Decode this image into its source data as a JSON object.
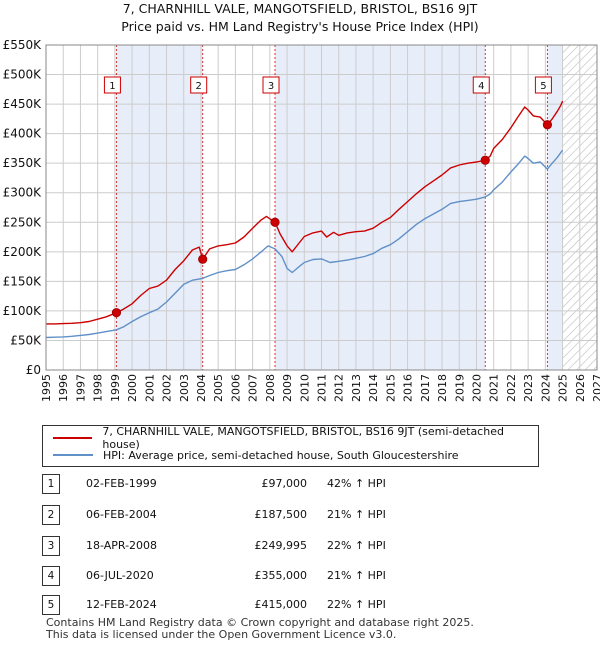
{
  "title": {
    "line1": "7, CHARNHILL VALE, MANGOTSFIELD, BRISTOL, BS16 9JT",
    "line2": "Price paid vs. HM Land Registry's House Price Index (HPI)"
  },
  "chart_data": {
    "type": "line",
    "title": "Price paid vs. HM Land Registry's House Price Index (HPI)",
    "xlim": [
      1995,
      2027
    ],
    "ylim": [
      0,
      550000
    ],
    "x_ticks": [
      "1995",
      "1996",
      "1997",
      "1998",
      "1999",
      "2000",
      "2001",
      "2002",
      "2003",
      "2004",
      "2005",
      "2006",
      "2007",
      "2008",
      "2009",
      "2010",
      "2011",
      "2012",
      "2013",
      "2014",
      "2015",
      "2016",
      "2017",
      "2018",
      "2019",
      "2020",
      "2021",
      "2022",
      "2023",
      "2024",
      "2025",
      "2026",
      "2027"
    ],
    "y_ticks": [
      {
        "value": 0,
        "label": "£0"
      },
      {
        "value": 50000,
        "label": "£50K"
      },
      {
        "value": 100000,
        "label": "£100K"
      },
      {
        "value": 150000,
        "label": "£150K"
      },
      {
        "value": 200000,
        "label": "£200K"
      },
      {
        "value": 250000,
        "label": "£250K"
      },
      {
        "value": 300000,
        "label": "£300K"
      },
      {
        "value": 350000,
        "label": "£350K"
      },
      {
        "value": 400000,
        "label": "£400K"
      },
      {
        "value": 450000,
        "label": "£450K"
      },
      {
        "value": 500000,
        "label": "£500K"
      },
      {
        "value": 550000,
        "label": "£550K"
      }
    ],
    "forecast_from": 2025.0,
    "series": [
      {
        "name": "7, CHARNHILL VALE, MANGOTSFIELD, BRISTOL, BS16 9JT (semi-detached house)",
        "color": "#cc0000",
        "points": [
          [
            1995.0,
            78000
          ],
          [
            1995.5,
            78000
          ],
          [
            1996.0,
            78500
          ],
          [
            1996.5,
            79000
          ],
          [
            1997.0,
            80000
          ],
          [
            1997.5,
            82000
          ],
          [
            1998.0,
            86000
          ],
          [
            1998.5,
            90000
          ],
          [
            1999.09,
            97000
          ],
          [
            1999.5,
            103000
          ],
          [
            2000.0,
            112000
          ],
          [
            2000.5,
            126000
          ],
          [
            2001.0,
            138000
          ],
          [
            2001.5,
            142000
          ],
          [
            2002.0,
            152000
          ],
          [
            2002.5,
            170000
          ],
          [
            2003.0,
            185000
          ],
          [
            2003.5,
            203000
          ],
          [
            2003.9,
            208000
          ],
          [
            2004.1,
            187500
          ],
          [
            2004.5,
            205000
          ],
          [
            2005.0,
            210000
          ],
          [
            2005.5,
            212000
          ],
          [
            2006.0,
            215000
          ],
          [
            2006.5,
            225000
          ],
          [
            2007.0,
            240000
          ],
          [
            2007.5,
            254000
          ],
          [
            2007.8,
            260000
          ],
          [
            2008.3,
            249995
          ],
          [
            2008.6,
            230000
          ],
          [
            2009.0,
            210000
          ],
          [
            2009.3,
            200000
          ],
          [
            2009.7,
            215000
          ],
          [
            2010.0,
            226000
          ],
          [
            2010.5,
            232000
          ],
          [
            2011.0,
            235000
          ],
          [
            2011.3,
            225000
          ],
          [
            2011.7,
            233000
          ],
          [
            2012.0,
            228000
          ],
          [
            2012.5,
            232000
          ],
          [
            2013.0,
            234000
          ],
          [
            2013.5,
            235000
          ],
          [
            2014.0,
            240000
          ],
          [
            2014.5,
            250000
          ],
          [
            2015.0,
            258000
          ],
          [
            2015.5,
            272000
          ],
          [
            2016.0,
            285000
          ],
          [
            2016.5,
            298000
          ],
          [
            2017.0,
            310000
          ],
          [
            2017.5,
            320000
          ],
          [
            2018.0,
            330000
          ],
          [
            2018.5,
            342000
          ],
          [
            2019.0,
            347000
          ],
          [
            2019.5,
            350000
          ],
          [
            2020.0,
            352000
          ],
          [
            2020.51,
            355000
          ],
          [
            2020.8,
            362000
          ],
          [
            2021.0,
            375000
          ],
          [
            2021.5,
            390000
          ],
          [
            2022.0,
            410000
          ],
          [
            2022.4,
            428000
          ],
          [
            2022.8,
            445000
          ],
          [
            2023.0,
            440000
          ],
          [
            2023.3,
            430000
          ],
          [
            2023.7,
            428000
          ],
          [
            2024.12,
            415000
          ],
          [
            2024.4,
            425000
          ],
          [
            2024.7,
            438000
          ],
          [
            2024.9,
            448000
          ],
          [
            2025.0,
            455000
          ]
        ]
      },
      {
        "name": "HPI: Average price, semi-detached house, South Gloucestershire",
        "color": "#6090c8",
        "points": [
          [
            1995.0,
            55000
          ],
          [
            1995.5,
            55500
          ],
          [
            1996.0,
            56000
          ],
          [
            1996.5,
            57000
          ],
          [
            1997.0,
            58500
          ],
          [
            1997.5,
            60000
          ],
          [
            1998.0,
            62500
          ],
          [
            1998.5,
            65000
          ],
          [
            1999.09,
            68000
          ],
          [
            1999.5,
            73000
          ],
          [
            2000.0,
            82000
          ],
          [
            2000.5,
            90000
          ],
          [
            2001.0,
            97000
          ],
          [
            2001.5,
            103000
          ],
          [
            2002.0,
            115000
          ],
          [
            2002.5,
            130000
          ],
          [
            2003.0,
            145000
          ],
          [
            2003.5,
            152000
          ],
          [
            2004.1,
            155000
          ],
          [
            2004.5,
            160000
          ],
          [
            2005.0,
            165000
          ],
          [
            2005.5,
            168000
          ],
          [
            2006.0,
            170000
          ],
          [
            2006.5,
            178000
          ],
          [
            2007.0,
            188000
          ],
          [
            2007.5,
            200000
          ],
          [
            2007.9,
            210000
          ],
          [
            2008.3,
            205000
          ],
          [
            2008.7,
            192000
          ],
          [
            2009.0,
            172000
          ],
          [
            2009.3,
            165000
          ],
          [
            2009.7,
            175000
          ],
          [
            2010.0,
            182000
          ],
          [
            2010.5,
            187000
          ],
          [
            2011.0,
            188000
          ],
          [
            2011.5,
            182000
          ],
          [
            2012.0,
            184000
          ],
          [
            2012.5,
            186000
          ],
          [
            2013.0,
            189000
          ],
          [
            2013.5,
            192000
          ],
          [
            2014.0,
            197000
          ],
          [
            2014.5,
            206000
          ],
          [
            2015.0,
            212000
          ],
          [
            2015.5,
            222000
          ],
          [
            2016.0,
            234000
          ],
          [
            2016.5,
            246000
          ],
          [
            2017.0,
            256000
          ],
          [
            2017.5,
            264000
          ],
          [
            2018.0,
            272000
          ],
          [
            2018.5,
            282000
          ],
          [
            2019.0,
            285000
          ],
          [
            2019.5,
            287000
          ],
          [
            2020.0,
            289000
          ],
          [
            2020.51,
            293000
          ],
          [
            2020.8,
            298000
          ],
          [
            2021.0,
            305000
          ],
          [
            2021.5,
            318000
          ],
          [
            2022.0,
            335000
          ],
          [
            2022.4,
            348000
          ],
          [
            2022.8,
            362000
          ],
          [
            2023.0,
            358000
          ],
          [
            2023.3,
            350000
          ],
          [
            2023.7,
            352000
          ],
          [
            2024.12,
            340000
          ],
          [
            2024.4,
            350000
          ],
          [
            2024.7,
            360000
          ],
          [
            2024.9,
            368000
          ],
          [
            2025.0,
            372000
          ]
        ]
      }
    ],
    "sales": [
      {
        "num": "1",
        "x": 1999.09,
        "price": 97000
      },
      {
        "num": "2",
        "x": 2004.1,
        "price": 187500
      },
      {
        "num": "3",
        "x": 2008.3,
        "price": 249995
      },
      {
        "num": "4",
        "x": 2020.51,
        "price": 355000
      },
      {
        "num": "5",
        "x": 2024.12,
        "price": 415000
      }
    ],
    "shade_ranges": [
      [
        1999.09,
        2004.1
      ],
      [
        2008.3,
        2020.51
      ],
      [
        2024.12,
        2025.0
      ]
    ],
    "colors": {
      "grid": "#cccccc",
      "shade": "#e8eef9",
      "marker_line": "#cc0000"
    }
  },
  "legend": {
    "property": "7, CHARNHILL VALE, MANGOTSFIELD, BRISTOL, BS16 9JT (semi-detached house)",
    "hpi": "HPI: Average price, semi-detached house, South Gloucestershire"
  },
  "sales_table": [
    {
      "num": "1",
      "date": "02-FEB-1999",
      "price": "£97,000",
      "hpi": "42% ↑ HPI"
    },
    {
      "num": "2",
      "date": "06-FEB-2004",
      "price": "£187,500",
      "hpi": "21% ↑ HPI"
    },
    {
      "num": "3",
      "date": "18-APR-2008",
      "price": "£249,995",
      "hpi": "22% ↑ HPI"
    },
    {
      "num": "4",
      "date": "06-JUL-2020",
      "price": "£355,000",
      "hpi": "21% ↑ HPI"
    },
    {
      "num": "5",
      "date": "12-FEB-2024",
      "price": "£415,000",
      "hpi": "22% ↑ HPI"
    }
  ],
  "footer": {
    "line1": "Contains HM Land Registry data © Crown copyright and database right 2025.",
    "line2": "This data is licensed under the Open Government Licence v3.0."
  }
}
